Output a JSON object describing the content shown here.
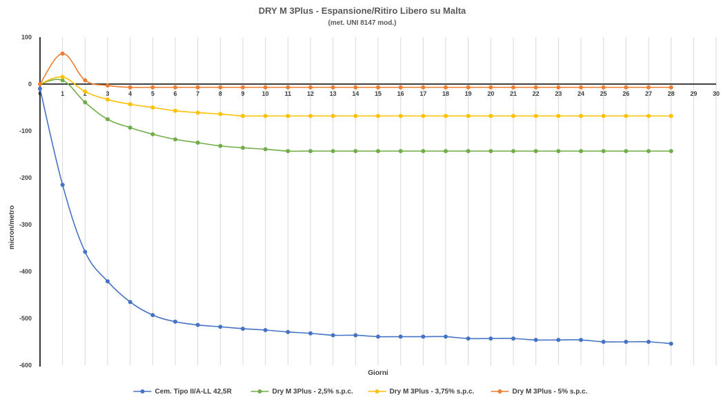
{
  "chart_data": {
    "type": "line",
    "title": "DRY M 3Plus - Espansione/Ritiro Libero su Malta",
    "subtitle": "(met. UNI 8147 mod.)",
    "xlabel": "Giorni",
    "ylabel": "micron/metro",
    "xlim": [
      0,
      30
    ],
    "ylim": [
      -600,
      100
    ],
    "x_ticks": [
      "0",
      "1",
      "2",
      "3",
      "4",
      "5",
      "6",
      "7",
      "8",
      "9",
      "10",
      "11",
      "12",
      "13",
      "14",
      "15",
      "16",
      "17",
      "18",
      "19",
      "20",
      "21",
      "22",
      "23",
      "24",
      "25",
      "26",
      "27",
      "28",
      "29",
      "30"
    ],
    "y_ticks": [
      "100",
      "0",
      "-100",
      "-200",
      "-300",
      "-400",
      "-500",
      "-600"
    ],
    "grid": "vertical",
    "legend_position": "bottom",
    "series": [
      {
        "name": "Cem. Tipo II/A-LL 42,5R",
        "color": "#4472C4",
        "x": [
          0,
          1,
          2,
          3,
          4,
          5,
          6,
          7,
          8,
          9,
          10,
          11,
          12,
          13,
          14,
          15,
          16,
          17,
          18,
          19,
          20,
          21,
          22,
          23,
          24,
          25,
          26,
          27,
          28
        ],
        "values": [
          -10,
          -215,
          -358,
          -421,
          -465,
          -493,
          -507,
          -514,
          -518,
          -522,
          -525,
          -529,
          -532,
          -536,
          -536,
          -539,
          -539,
          -539,
          -539,
          -543,
          -543,
          -543,
          -546,
          -546,
          -546,
          -550,
          -550,
          -550,
          -554
        ]
      },
      {
        "name": "Dry M 3Plus - 2,5% s.p.c.",
        "color": "#70AD47",
        "x": [
          0,
          1,
          2,
          3,
          4,
          5,
          6,
          7,
          8,
          9,
          10,
          11,
          12,
          13,
          14,
          15,
          16,
          17,
          18,
          19,
          20,
          21,
          22,
          23,
          24,
          25,
          26,
          27,
          28
        ],
        "values": [
          0,
          8,
          -39,
          -75,
          -93,
          -107,
          -118,
          -125,
          -132,
          -136,
          -139,
          -143,
          -143,
          -143,
          -143,
          -143,
          -143,
          -143,
          -143,
          -143,
          -143,
          -143,
          -143,
          -143,
          -143,
          -143,
          -143,
          -143,
          -143
        ]
      },
      {
        "name": "Dry M 3Plus - 3,75% s.p.c.",
        "color": "#FFC000",
        "x": [
          0,
          1,
          2,
          3,
          4,
          5,
          6,
          7,
          8,
          9,
          10,
          11,
          12,
          13,
          14,
          15,
          16,
          17,
          18,
          19,
          20,
          21,
          22,
          23,
          24,
          25,
          26,
          27,
          28
        ],
        "values": [
          0,
          15,
          -16,
          -33,
          -43,
          -50,
          -57,
          -61,
          -64,
          -68,
          -68,
          -68,
          -68,
          -68,
          -68,
          -68,
          -68,
          -68,
          -68,
          -68,
          -68,
          -68,
          -68,
          -68,
          -68,
          -68,
          -68,
          -68,
          -68
        ]
      },
      {
        "name": "Dry M 3Plus - 5% s.p.c.",
        "color": "#ED7D31",
        "x": [
          0,
          1,
          2,
          3,
          4,
          5,
          6,
          7,
          8,
          9,
          10,
          11,
          12,
          13,
          14,
          15,
          16,
          17,
          18,
          19,
          20,
          21,
          22,
          23,
          24,
          25,
          26,
          27,
          28
        ],
        "values": [
          0,
          65,
          8,
          -3,
          -7,
          -7,
          -7,
          -7,
          -7,
          -7,
          -7,
          -7,
          -7,
          -7,
          -7,
          -7,
          -7,
          -7,
          -7,
          -7,
          -7,
          -7,
          -7,
          -7,
          -7,
          -7,
          -7,
          -7,
          -7
        ]
      }
    ]
  }
}
